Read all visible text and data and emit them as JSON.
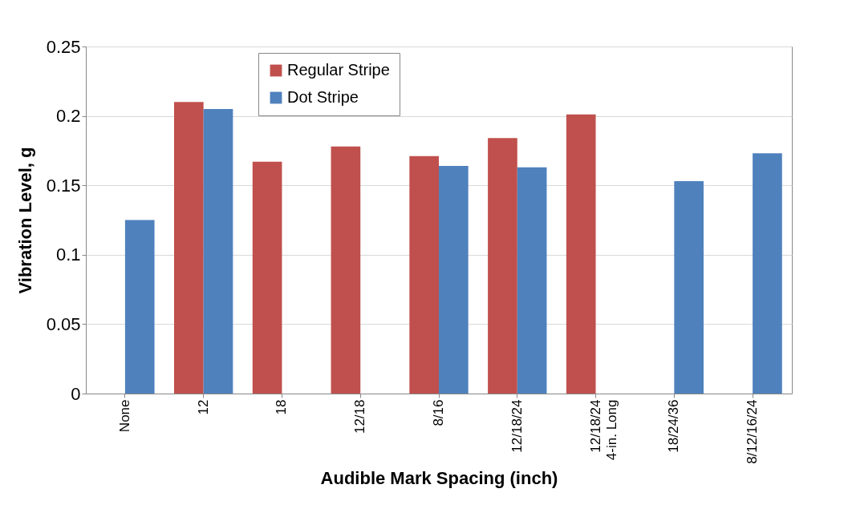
{
  "chart_data": {
    "type": "bar",
    "xlabel": "Audible Mark Spacing (inch)",
    "ylabel": "Vibration Level, g",
    "categories": [
      "None",
      "12",
      "18",
      "12/18",
      "8/16",
      "12/18/24",
      "12/18/24\n4-in. Long",
      "18/24/36",
      "8/12/16/24"
    ],
    "series": [
      {
        "name": "Regular Stripe",
        "color": "#c0504d",
        "values": [
          null,
          0.21,
          0.167,
          0.178,
          0.171,
          0.184,
          0.201,
          null,
          null
        ]
      },
      {
        "name": "Dot Stripe",
        "color": "#4f81bd",
        "values": [
          0.125,
          0.205,
          null,
          null,
          0.164,
          0.163,
          null,
          0.153,
          0.173
        ]
      }
    ],
    "ylim": [
      0,
      0.25
    ],
    "yticks": [
      0,
      0.05,
      0.1,
      0.15,
      0.2,
      0.25
    ],
    "grid": "y",
    "legend": "top"
  }
}
